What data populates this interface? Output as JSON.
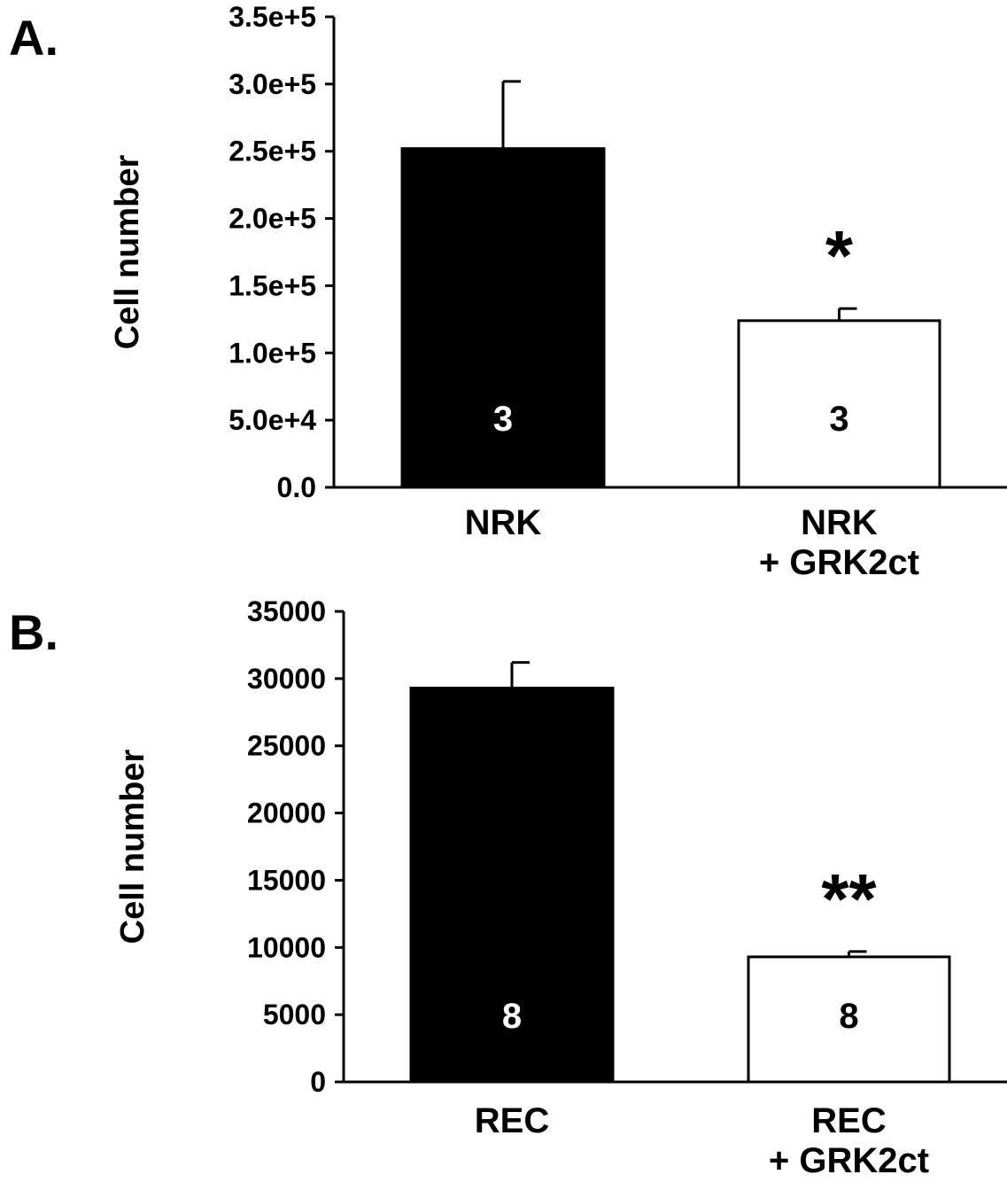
{
  "chart_data": [
    {
      "type": "bar",
      "panel_label": "A.",
      "categories": [
        [
          "NRK"
        ],
        [
          "NRK",
          "+ GRK2ct"
        ]
      ],
      "values": [
        252000,
        124000
      ],
      "errors": [
        50000,
        9000
      ],
      "n_labels": [
        "3",
        "3"
      ],
      "significance": [
        "",
        "*"
      ],
      "bar_colors": [
        "#000000",
        "#ffffff"
      ],
      "ylabel": "Cell number",
      "ylim": [
        0,
        350000
      ],
      "yticks": [
        0,
        50000,
        100000,
        150000,
        200000,
        250000,
        300000,
        350000
      ],
      "ytick_labels": [
        "0.0",
        "5.0e+4",
        "1.0e+5",
        "1.5e+5",
        "2.0e+5",
        "2.5e+5",
        "3.0e+5",
        "3.5e+5"
      ],
      "grid": false,
      "legend": "none"
    },
    {
      "type": "bar",
      "panel_label": "B.",
      "categories": [
        [
          "REC"
        ],
        [
          "REC",
          "+ GRK2ct"
        ]
      ],
      "values": [
        29300,
        9300
      ],
      "errors": [
        1900,
        400
      ],
      "n_labels": [
        "8",
        "8"
      ],
      "significance": [
        "",
        "**"
      ],
      "bar_colors": [
        "#000000",
        "#ffffff"
      ],
      "ylabel": "Cell number",
      "ylim": [
        0,
        35000
      ],
      "yticks": [
        0,
        5000,
        10000,
        15000,
        20000,
        25000,
        30000,
        35000
      ],
      "ytick_labels": [
        "0",
        "5000",
        "10000",
        "15000",
        "20000",
        "25000",
        "30000",
        "35000"
      ],
      "grid": false,
      "legend": "none"
    }
  ]
}
